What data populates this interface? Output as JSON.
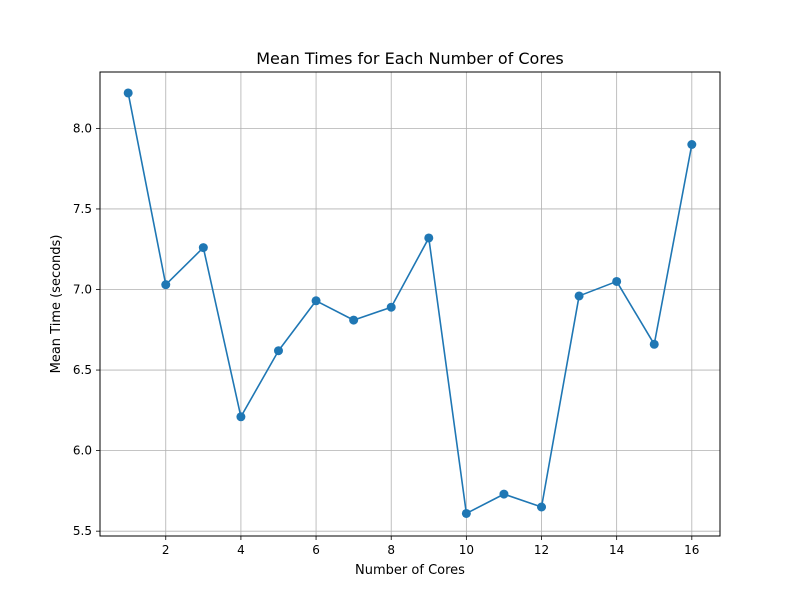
{
  "chart_data": {
    "type": "line",
    "title": "Mean Times for Each Number of Cores",
    "xlabel": "Number of Cores",
    "ylabel": "Mean Time (seconds)",
    "xlim": [
      0.25,
      16.75
    ],
    "ylim": [
      5.47,
      8.35
    ],
    "xticks": [
      2,
      4,
      6,
      8,
      10,
      12,
      14,
      16
    ],
    "yticks": [
      5.5,
      6.0,
      6.5,
      7.0,
      7.5,
      8.0
    ],
    "xtick_labels": [
      "2",
      "4",
      "6",
      "8",
      "10",
      "12",
      "14",
      "16"
    ],
    "ytick_labels": [
      "5.5",
      "6.0",
      "6.5",
      "7.0",
      "7.5",
      "8.0"
    ],
    "grid": true,
    "series": [
      {
        "color": "#1f77b4",
        "marker": "circle",
        "x": [
          1,
          2,
          3,
          4,
          5,
          6,
          7,
          8,
          9,
          10,
          11,
          12,
          13,
          14,
          15,
          16
        ],
        "values": [
          8.22,
          7.03,
          7.26,
          6.21,
          6.62,
          6.93,
          6.81,
          6.89,
          7.32,
          5.61,
          5.73,
          5.65,
          6.96,
          7.05,
          6.66,
          7.9
        ]
      }
    ]
  }
}
